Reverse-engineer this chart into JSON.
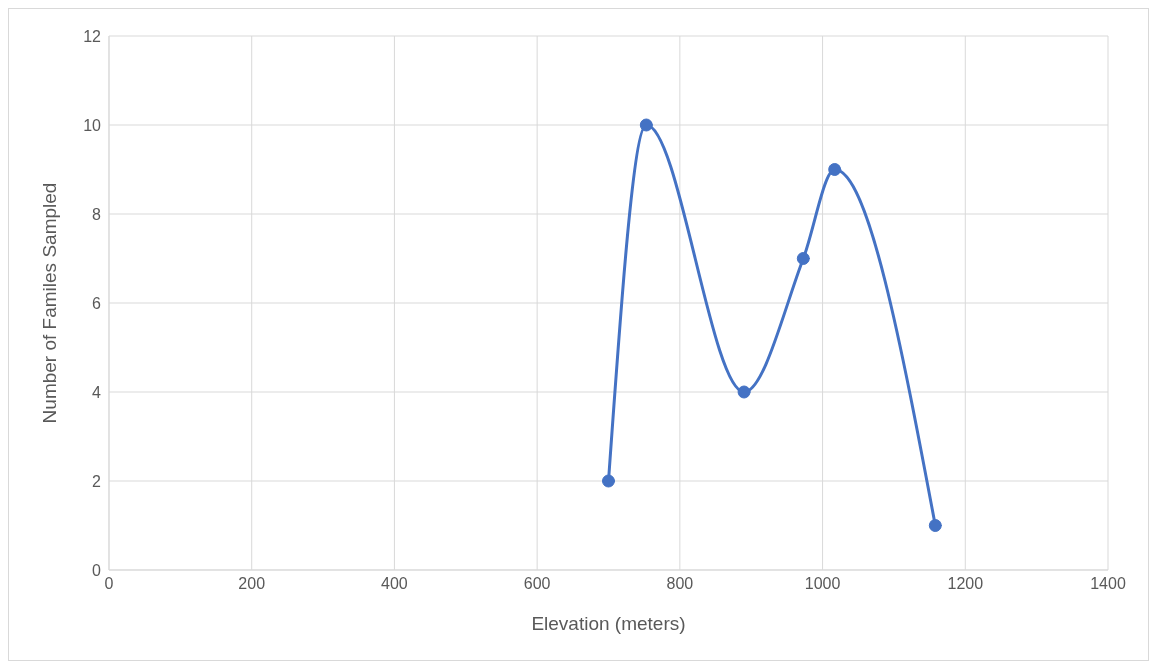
{
  "chart_data": {
    "type": "line",
    "xlabel": "Elevation (meters)",
    "ylabel": "Number of Familes Sampled",
    "x": [
      700,
      753,
      890,
      973,
      1017,
      1158
    ],
    "series": [
      {
        "color": "#4472c4",
        "values": [
          2,
          10,
          4,
          7,
          9,
          1
        ]
      }
    ],
    "xlim": [
      0,
      1400
    ],
    "xticks": [
      0,
      200,
      400,
      600,
      800,
      1000,
      1200,
      1400
    ],
    "ylim": [
      0,
      12
    ],
    "yticks": [
      0,
      2,
      4,
      6,
      8,
      10,
      12
    ],
    "grid": true,
    "marker": "circle",
    "line_style": "solid"
  }
}
